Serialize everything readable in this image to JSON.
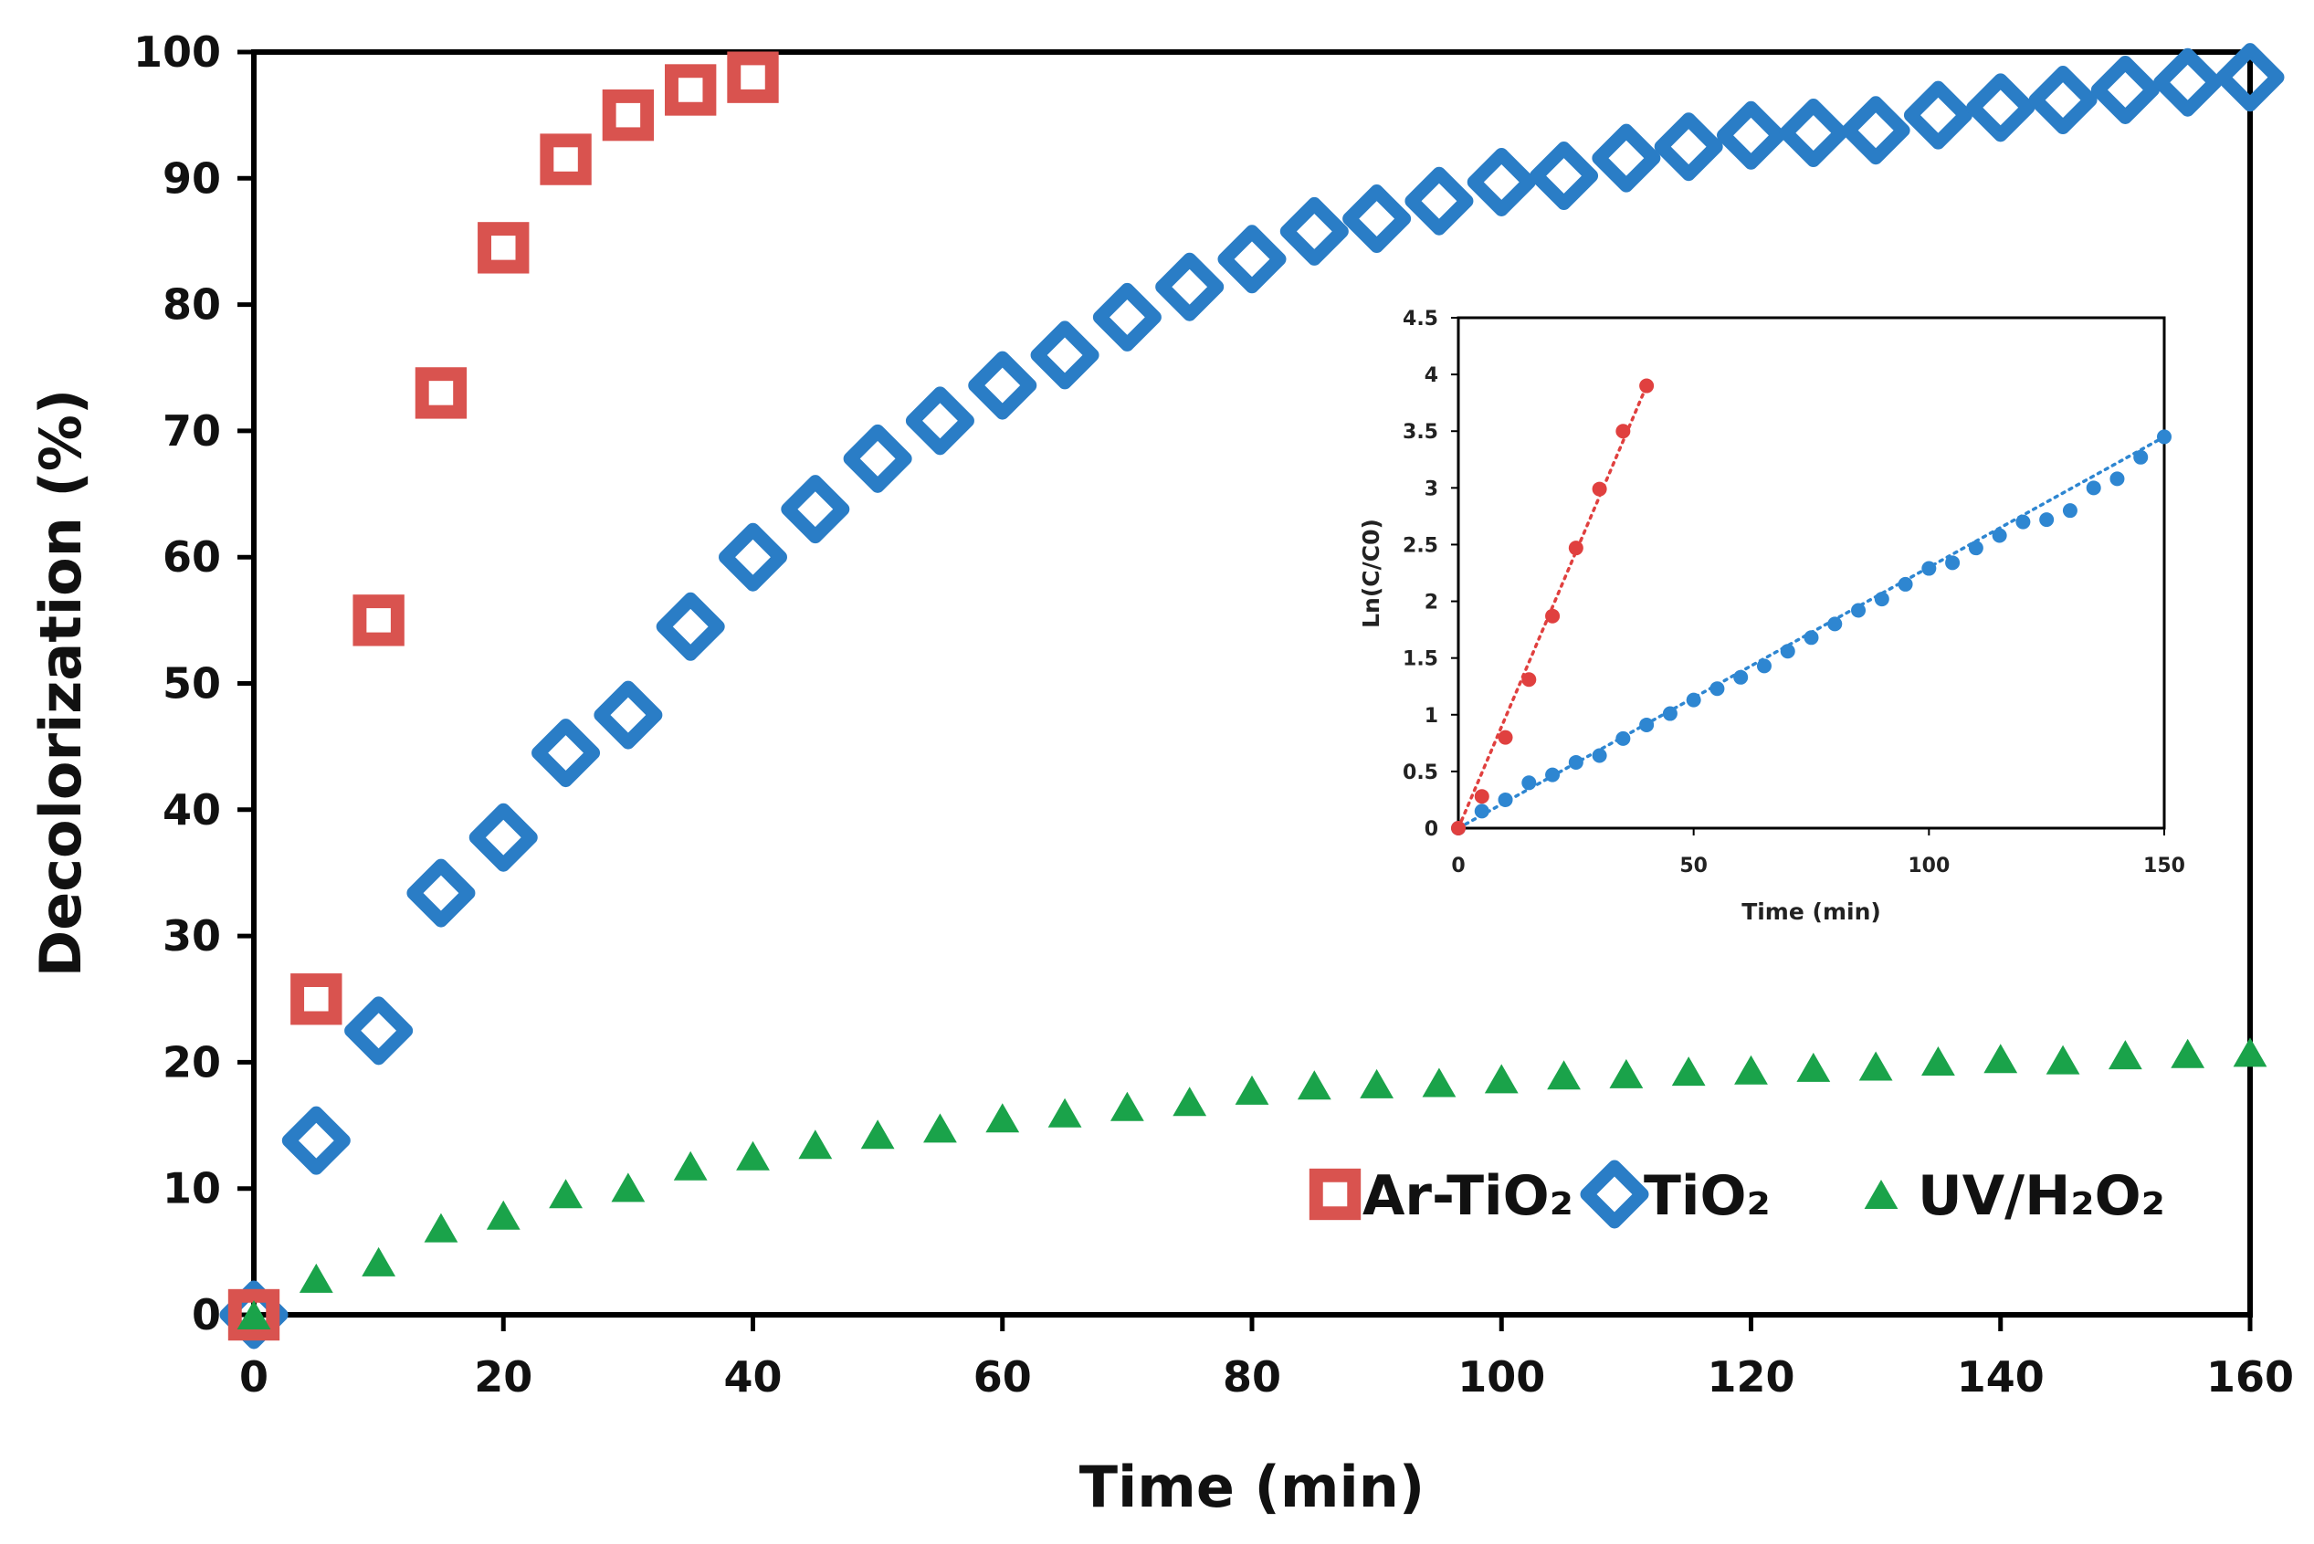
{
  "chart_data": [
    {
      "id": "main",
      "type": "scatter",
      "title": "",
      "xlabel": "Time (min)",
      "ylabel": "Decolorization (%)",
      "xlim": [
        0,
        160
      ],
      "ylim": [
        0,
        100
      ],
      "xticks": [
        0,
        20,
        40,
        60,
        80,
        100,
        120,
        140,
        160
      ],
      "yticks": [
        0,
        10,
        20,
        30,
        40,
        50,
        60,
        70,
        80,
        90,
        100
      ],
      "grid": false,
      "legend_position": "bottom-right",
      "series": [
        {
          "name": "Ar-TiO₂",
          "marker": "square",
          "color": "#d9534f",
          "x": [
            0,
            5,
            10,
            15,
            20,
            25,
            30,
            35,
            40
          ],
          "y": [
            0,
            25,
            55,
            73,
            84.5,
            91.5,
            95,
            97,
            98
          ]
        },
        {
          "name": "TiO₂",
          "marker": "diamond",
          "color": "#2a7dc6",
          "x": [
            0,
            5,
            10,
            15,
            20,
            25,
            30,
            35,
            40,
            45,
            50,
            55,
            60,
            65,
            70,
            75,
            80,
            85,
            90,
            95,
            100,
            105,
            110,
            115,
            120,
            125,
            130,
            135,
            140,
            145,
            150,
            155,
            160
          ],
          "y": [
            0,
            13.8,
            22.5,
            33.4,
            37.8,
            44.5,
            47.5,
            54.5,
            60,
            63.8,
            67.8,
            70.8,
            73.6,
            76,
            79,
            81.4,
            83.6,
            85.8,
            86.8,
            88.2,
            89.7,
            90.2,
            91.6,
            92.5,
            93.4,
            93.6,
            93.8,
            95,
            95.6,
            96.2,
            97,
            97.6,
            98
          ]
        },
        {
          "name": "UV/H₂O₂",
          "marker": "triangle",
          "color": "#1aa34a",
          "x": [
            0,
            5,
            10,
            15,
            20,
            25,
            30,
            35,
            40,
            45,
            50,
            55,
            60,
            65,
            70,
            75,
            80,
            85,
            90,
            95,
            100,
            105,
            110,
            115,
            120,
            125,
            130,
            135,
            140,
            145,
            150,
            155,
            160
          ],
          "y": [
            0,
            2.9,
            4.2,
            6.9,
            7.9,
            9.6,
            10.1,
            11.8,
            12.6,
            13.5,
            14.3,
            14.8,
            15.6,
            16,
            16.5,
            16.9,
            17.8,
            18.2,
            18.3,
            18.4,
            18.7,
            19,
            19.1,
            19.3,
            19.4,
            19.6,
            19.7,
            20.1,
            20.3,
            20.2,
            20.6,
            20.7,
            20.8
          ]
        }
      ]
    },
    {
      "id": "inset",
      "type": "scatter",
      "title": "",
      "xlabel": "Time (min)",
      "ylabel": "Ln(C/C0)",
      "xlim": [
        0,
        150
      ],
      "ylim": [
        0,
        4.5
      ],
      "xticks": [
        0,
        50,
        100,
        150
      ],
      "yticks": [
        0,
        0.5,
        1,
        1.5,
        2,
        2.5,
        3,
        3.5,
        4,
        4.5
      ],
      "ytick_labels": [
        "0",
        "0.5",
        "1",
        "1.5",
        "2",
        "2.5",
        "3",
        "3.5",
        "4",
        "4.5"
      ],
      "grid": false,
      "series": [
        {
          "name": "Ar-TiO₂",
          "color": "#e0403f",
          "trendline": {
            "x": [
              0,
              40
            ],
            "y": [
              0,
              3.9
            ],
            "style": "dotted"
          },
          "x": [
            0,
            5,
            10,
            15,
            20,
            25,
            30,
            35,
            40
          ],
          "y": [
            0,
            0.28,
            0.8,
            1.31,
            1.87,
            2.47,
            2.99,
            3.5,
            3.9
          ]
        },
        {
          "name": "TiO₂",
          "color": "#2e86d1",
          "trendline": {
            "x": [
              0,
              150
            ],
            "y": [
              0,
              3.45
            ],
            "style": "dotted"
          },
          "x": [
            0,
            5,
            10,
            15,
            20,
            25,
            30,
            35,
            40,
            45,
            50,
            55,
            60,
            65,
            70,
            75,
            80,
            85,
            90,
            95,
            100,
            105,
            110,
            115,
            120,
            125,
            130,
            135,
            140,
            145,
            150
          ],
          "y": [
            0,
            0.15,
            0.25,
            0.4,
            0.47,
            0.58,
            0.64,
            0.79,
            0.91,
            1.01,
            1.13,
            1.23,
            1.33,
            1.43,
            1.56,
            1.68,
            1.8,
            1.92,
            2.02,
            2.15,
            2.29,
            2.34,
            2.47,
            2.58,
            2.7,
            2.72,
            2.8,
            3.0,
            3.08,
            3.27,
            3.45
          ]
        }
      ]
    }
  ]
}
